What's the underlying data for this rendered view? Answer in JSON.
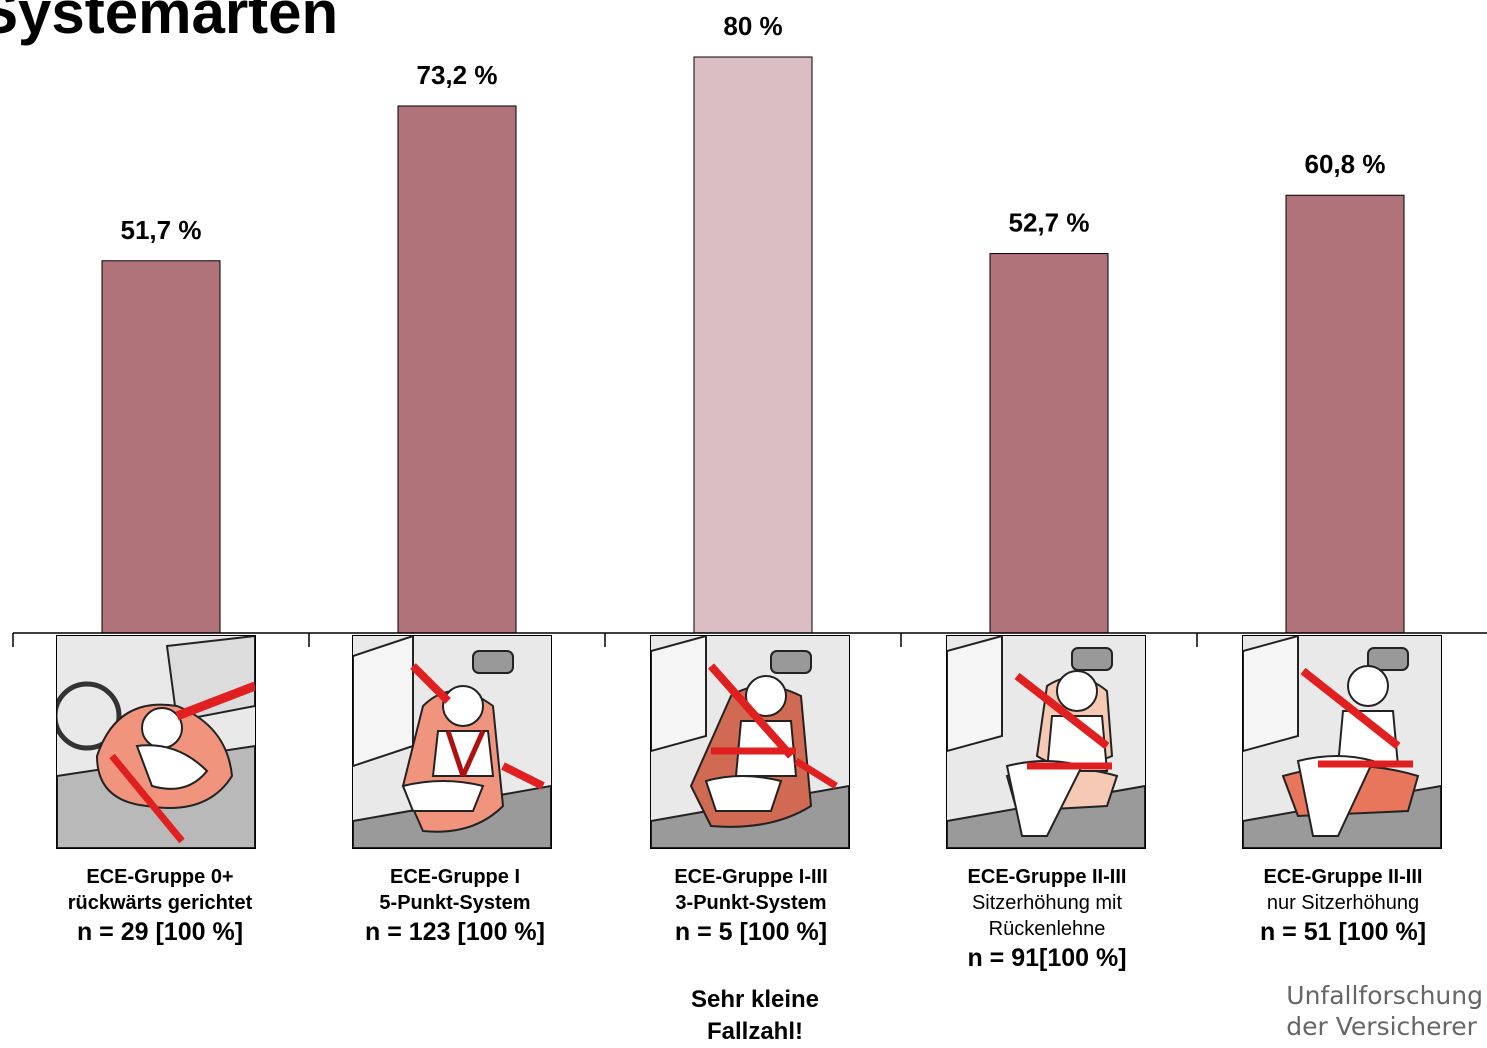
{
  "title": "Systemarten",
  "colors": {
    "bar": "#b0737a",
    "bar_highlight": "#dbbdc4",
    "axis": "#000000"
  },
  "chart_data": {
    "type": "bar",
    "title": "Systemarten",
    "categories": [
      "ECE-Gruppe 0+",
      "ECE-Gruppe I",
      "ECE-Gruppe I-III",
      "ECE-Gruppe II-III",
      "ECE-Gruppe II-III"
    ],
    "values": [
      51.7,
      73.2,
      80,
      52.7,
      60.8
    ],
    "value_labels": [
      "51,7 %",
      "73,2 %",
      "80 %",
      "52,7 %",
      "60,8 %"
    ],
    "highlighted_index": 2,
    "grid": false,
    "legend": "none"
  },
  "categories": [
    {
      "line1": "ECE-Gruppe 0+",
      "line2": "rückwärts gerichtet",
      "line2_bold": true,
      "line3": "",
      "n": "n = 29 [100 %]",
      "icon": "infant-carrier-icon"
    },
    {
      "line1": "ECE-Gruppe I",
      "line2": "5-Punkt-System",
      "line2_bold": true,
      "line3": "",
      "n": "n = 123 [100 %]",
      "icon": "five-point-harness-seat-icon"
    },
    {
      "line1": "ECE-Gruppe I-III",
      "line2": "3-Punkt-System",
      "line2_bold": true,
      "line3": "",
      "n": "n = 5 [100 %]",
      "icon": "three-point-belt-seat-icon"
    },
    {
      "line1": "ECE-Gruppe II-III",
      "line2": "Sitzerhöhung mit",
      "line2_bold": false,
      "line3": "Rückenlehne",
      "n": "n = 91[100 %]",
      "icon": "booster-seat-with-backrest-icon"
    },
    {
      "line1": "ECE-Gruppe II-III",
      "line2": "nur Sitzerhöhung",
      "line2_bold": false,
      "line3": "",
      "n": "n = 51 [100 %]",
      "icon": "booster-cushion-icon"
    }
  ],
  "note": {
    "line1": "Sehr kleine",
    "line2": "Fallzahl!"
  },
  "logo": {
    "line1": "Unfallforschung",
    "line2": "der Versicherer"
  }
}
